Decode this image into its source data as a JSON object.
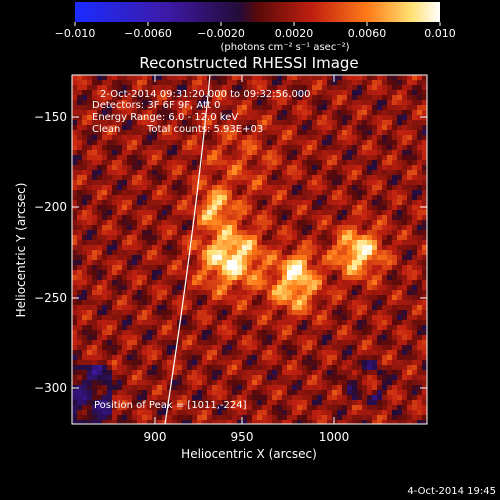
{
  "colorbar": {
    "ticks": [
      "−0.010",
      "−0.0060",
      "−0.0020",
      "0.0020",
      "0.0060",
      "0.010"
    ],
    "unit_label": "(photons cm⁻² s⁻¹ asec⁻²)",
    "colors": [
      "#1a2cff",
      "#3d1aa8",
      "#240c3a",
      "#5a0a0a",
      "#c02010",
      "#ff7a18",
      "#ffe070",
      "#ffffff"
    ]
  },
  "title": "Reconstructed RHESSI Image",
  "info": {
    "time_range": "2-Oct-2014 09:31:20.000 to 09:32:56.000",
    "detectors": "Detectors: 3F 6F 9F, Att 0",
    "energy": "Energy Range: 6.0 - 12.0 keV",
    "clean_label": "Clean",
    "counts": "Total counts: 5.93E+03",
    "peak": "Position of Peak = [1011,-224]"
  },
  "axes": {
    "xlabel": "Heliocentric X (arcsec)",
    "ylabel": "Heliocentric Y (arcsec)",
    "xticks": [
      "900",
      "950",
      "1000"
    ],
    "yticks": [
      "−150",
      "−200",
      "−250",
      "−300"
    ],
    "xlim": [
      858,
      1048
    ],
    "ylim": [
      -325,
      -131
    ]
  },
  "timestamp": "4-Oct-2014 19:45"
}
